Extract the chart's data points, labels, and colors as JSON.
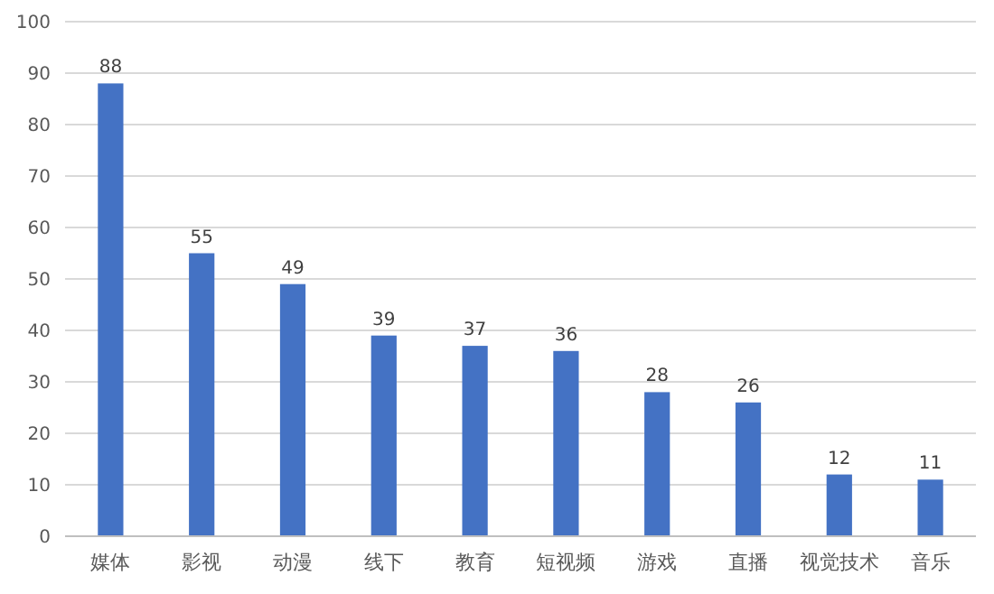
{
  "chart_data": {
    "type": "bar",
    "categories": [
      "媒体",
      "影视",
      "动漫",
      "线下",
      "教育",
      "短视频",
      "游戏",
      "直播",
      "视觉技术",
      "音乐"
    ],
    "values": [
      88,
      55,
      49,
      39,
      37,
      36,
      28,
      26,
      12,
      11
    ],
    "color": "#4472c4",
    "ylim": [
      0,
      100
    ],
    "yticks": [
      0,
      10,
      20,
      30,
      40,
      50,
      60,
      70,
      80,
      90,
      100
    ],
    "grid": "y",
    "data_labels": true
  }
}
